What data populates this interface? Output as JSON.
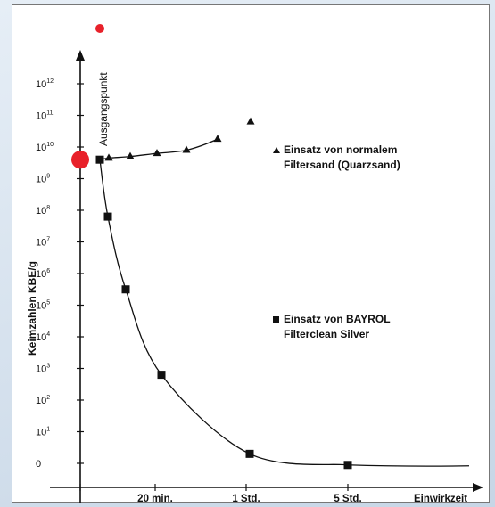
{
  "chart_data": {
    "type": "line",
    "ylabel": "Keimzahlen KBE/g",
    "xlabel": "Einwirkzeit",
    "y_scale": "log",
    "y_ticks": [
      {
        "base": "0",
        "exp": ""
      },
      {
        "base": "10",
        "exp": "1"
      },
      {
        "base": "10",
        "exp": "2"
      },
      {
        "base": "10",
        "exp": "3"
      },
      {
        "base": "10",
        "exp": "4"
      },
      {
        "base": "10",
        "exp": "5"
      },
      {
        "base": "10",
        "exp": "6"
      },
      {
        "base": "10",
        "exp": "7"
      },
      {
        "base": "10",
        "exp": "8"
      },
      {
        "base": "10",
        "exp": "9"
      },
      {
        "base": "10",
        "exp": "10"
      },
      {
        "base": "10",
        "exp": "11"
      },
      {
        "base": "10",
        "exp": "12"
      }
    ],
    "x_ticks": [
      "20 min.",
      "1 Std.",
      "5 Std."
    ],
    "start_point": {
      "label": "Ausgangspunkt",
      "y_log": 9.6,
      "color": "#e8212a"
    },
    "series": [
      {
        "name": "Einsatz von normalem Filtersand (Quarzsand)",
        "name_lines": [
          "Einsatz von normalem",
          "Filtersand (Quarzsand)"
        ],
        "marker": "triangle",
        "color": "#111111",
        "points": [
          {
            "x": "",
            "y_log": 9.6
          },
          {
            "x": "",
            "y_log": 9.65
          },
          {
            "x": "",
            "y_log": 9.7
          },
          {
            "x": "",
            "y_log": 9.8
          },
          {
            "x": "20 min.",
            "y_log": 9.9
          },
          {
            "x": "",
            "y_log": 10.25
          },
          {
            "x": "",
            "y_log": 10.8
          },
          {
            "x": "1 Std.",
            "y_log": 11.4
          }
        ]
      },
      {
        "name": "Einsatz von BAYROL Filterclean Silver",
        "name_lines": [
          "Einsatz von BAYROL",
          "Filterclean Silver"
        ],
        "marker": "square",
        "color": "#111111",
        "points": [
          {
            "x": "",
            "y_log": 9.6
          },
          {
            "x": "",
            "y_log": 7.8
          },
          {
            "x": "",
            "y_log": 5.5
          },
          {
            "x": "20 min.",
            "y_log": 2.8
          },
          {
            "x": "1 Std.",
            "y_log": 0.3
          },
          {
            "x": "5 Std.",
            "y_log": -0.05
          }
        ]
      }
    ]
  }
}
